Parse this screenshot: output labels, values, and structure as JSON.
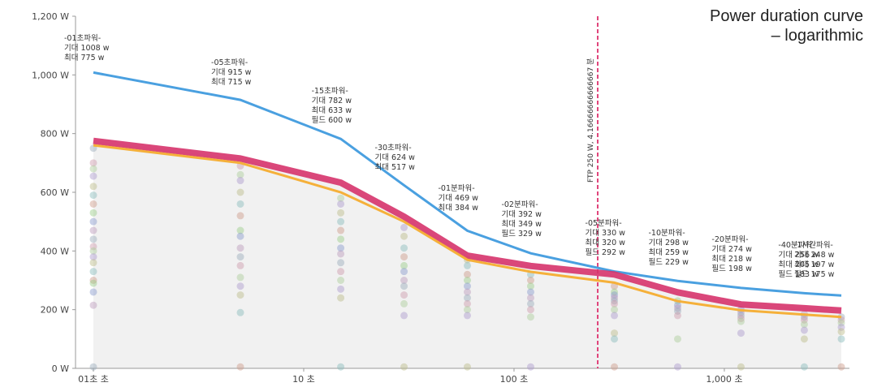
{
  "chart_data": {
    "type": "line",
    "title_line1": "Power duration curve",
    "title_line2": "– logarithmic",
    "x_scale": "log",
    "xlim": [
      1,
      3600
    ],
    "ylim": [
      0,
      1200
    ],
    "y_ticks": [
      {
        "value": 0,
        "label": "0 W"
      },
      {
        "value": 200,
        "label": "200 W"
      },
      {
        "value": 400,
        "label": "400 W"
      },
      {
        "value": 600,
        "label": "600 W"
      },
      {
        "value": 800,
        "label": "800 W"
      },
      {
        "value": 1000,
        "label": "1,000 W"
      },
      {
        "value": 1200,
        "label": "1,200 W"
      }
    ],
    "x_ticks": [
      {
        "value": 1,
        "label": "01초 초"
      },
      {
        "value": 10,
        "label": "10 초"
      },
      {
        "value": 100,
        "label": "100 초"
      },
      {
        "value": 1000,
        "label": "1,000 초"
      }
    ],
    "grid": false,
    "ftp": {
      "x": 250,
      "label": "FTP 250 W, 4.16666666666667 분"
    },
    "series": [
      {
        "key": "expected",
        "color": "#4aa0e0",
        "x": [
          1,
          5,
          15,
          30,
          60,
          120,
          300,
          600,
          1200,
          2400,
          3600
        ],
        "y": [
          1008,
          915,
          782,
          624,
          469,
          392,
          330,
          298,
          274,
          256,
          248
        ]
      },
      {
        "key": "best",
        "color": "#d6336c",
        "x": [
          1,
          5,
          15,
          30,
          60,
          120,
          300,
          600,
          1200,
          2400,
          3600
        ],
        "y": [
          775,
          715,
          633,
          517,
          384,
          349,
          320,
          259,
          218,
          205,
          197
        ]
      },
      {
        "key": "gold",
        "color": "#f5b03a",
        "x": [
          1,
          5,
          15,
          30,
          60,
          120,
          300,
          600,
          1200,
          2400,
          3600
        ],
        "y": [
          760,
          700,
          600,
          500,
          370,
          329,
          292,
          229,
          198,
          183,
          175
        ]
      }
    ],
    "scatter_columns": [
      {
        "x": 1,
        "values": [
          750,
          700,
          680,
          655,
          620,
          590,
          560,
          530,
          500,
          470,
          440,
          415,
          400,
          380,
          360,
          330,
          300,
          290,
          260,
          215,
          5
        ]
      },
      {
        "x": 5,
        "values": [
          690,
          660,
          640,
          600,
          560,
          520,
          470,
          450,
          410,
          380,
          350,
          310,
          280,
          250,
          190,
          5
        ]
      },
      {
        "x": 15,
        "values": [
          580,
          560,
          530,
          500,
          470,
          440,
          410,
          390,
          360,
          330,
          300,
          270,
          240,
          5
        ]
      },
      {
        "x": 30,
        "values": [
          480,
          450,
          410,
          380,
          350,
          330,
          300,
          280,
          250,
          220,
          180,
          5
        ]
      },
      {
        "x": 60,
        "values": [
          370,
          350,
          320,
          300,
          280,
          260,
          240,
          220,
          200,
          180,
          5
        ]
      },
      {
        "x": 120,
        "values": [
          320,
          300,
          280,
          260,
          240,
          220,
          200,
          175,
          5
        ]
      },
      {
        "x": 300,
        "values": [
          280,
          260,
          250,
          240,
          230,
          220,
          200,
          180,
          120,
          100,
          5
        ]
      },
      {
        "x": 600,
        "values": [
          230,
          215,
          205,
          195,
          180,
          100,
          5
        ]
      },
      {
        "x": 1200,
        "values": [
          200,
          190,
          180,
          170,
          160,
          120,
          5
        ]
      },
      {
        "x": 2400,
        "values": [
          185,
          175,
          165,
          150,
          130,
          100,
          5
        ]
      },
      {
        "x": 3600,
        "values": [
          175,
          165,
          155,
          140,
          125,
          100,
          5
        ]
      }
    ],
    "annotations": [
      {
        "x": 1,
        "lines": [
          "-01초파워-",
          "기대 1008 w",
          "최대 775 w"
        ]
      },
      {
        "x": 5,
        "lines": [
          "-05초파워-",
          "기대 915 w",
          "최대 715 w"
        ]
      },
      {
        "x": 15,
        "lines": [
          "-15초파워-",
          "기대 782 w",
          "최대 633 w",
          "필드 600 w"
        ]
      },
      {
        "x": 30,
        "lines": [
          "-30초파워-",
          "기대 624 w",
          "최대 517 w"
        ]
      },
      {
        "x": 60,
        "lines": [
          "-01분파워-",
          "기대 469 w",
          "최대 384 w"
        ]
      },
      {
        "x": 120,
        "lines": [
          "-02분파워-",
          "기대 392 w",
          "최대 349 w",
          "필드 329 w"
        ]
      },
      {
        "x": 300,
        "lines": [
          "-05분파워-",
          "기대 330 w",
          "최대 320 w",
          "필드 292 w"
        ]
      },
      {
        "x": 600,
        "lines": [
          "-10분파워-",
          "기대 298 w",
          "최대 259 w",
          "필드 229 w"
        ]
      },
      {
        "x": 1200,
        "lines": [
          "-20분파워-",
          "기대 274 w",
          "최대 218 w",
          "필드 198 w"
        ]
      },
      {
        "x": 2400,
        "lines": [
          "-40분파워-",
          "기대 256 w",
          "최대 205 w",
          "필드 183 w"
        ]
      },
      {
        "x": 3600,
        "lines": [
          "-1시간파워-",
          "기대 248 w",
          "최대 197 w",
          "필드 175 w"
        ]
      }
    ]
  }
}
